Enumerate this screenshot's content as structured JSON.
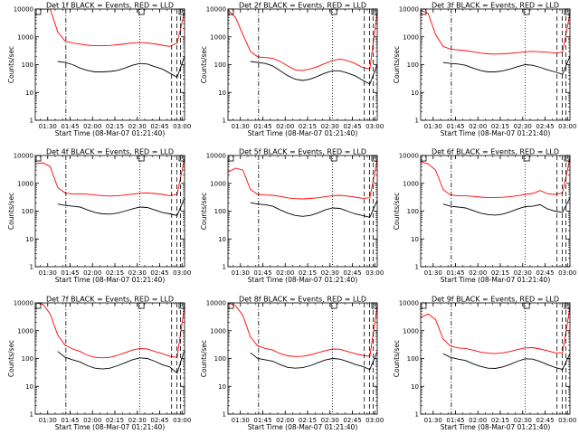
{
  "page": {
    "background": "#ffffff"
  },
  "chart_data": [
    {
      "type": "line",
      "title": "Det 1f BLACK = Events, RED = LLD",
      "xlabel": "Start Time (08-Mar-07 01:21:40)",
      "ylabel": "Counts/sec",
      "x_ticks": [
        "01:30",
        "01:45",
        "02:00",
        "02:15",
        "02:30",
        "02:45",
        "03:00"
      ],
      "y_ticks": [
        "1",
        "10",
        "100",
        "1000",
        "10000"
      ],
      "yscale": "log",
      "ylim": [
        1,
        10000
      ],
      "xlim": [
        "01:21:40",
        "03:01:40"
      ],
      "x": [
        "01:21:40",
        "01:26:40",
        "01:31:40",
        "01:36:40",
        "01:41:40",
        "01:46:40",
        "01:51:40",
        "01:56:40",
        "02:01:40",
        "02:06:40",
        "02:11:40",
        "02:16:40",
        "02:21:40",
        "02:26:40",
        "02:31:40",
        "02:36:40",
        "02:41:40",
        "02:46:40",
        "02:51:40",
        "02:56:40",
        "03:01:40"
      ],
      "series": [
        {
          "color": "#ff0000",
          "values": [
            10000,
            10000,
            10000,
            1500,
            700,
            600,
            550,
            500,
            480,
            480,
            490,
            520,
            560,
            600,
            620,
            600,
            560,
            500,
            450,
            600,
            8000
          ]
        },
        {
          "color": "#000000",
          "values": [
            null,
            null,
            null,
            130,
            120,
            100,
            75,
            62,
            55,
            55,
            57,
            62,
            75,
            95,
            110,
            105,
            85,
            70,
            50,
            35,
            200
          ]
        }
      ],
      "vlines": {
        "dashdot": [
          "01:42:10"
        ],
        "dotted": [
          "02:31:40"
        ],
        "dashed": [
          "02:53:00",
          "02:56:30",
          "02:59:00"
        ]
      },
      "markers": [
        "01:21:40",
        "02:32:40",
        "03:01:40"
      ]
    },
    {
      "type": "line",
      "title": "Det 2f BLACK = Events, RED = LLD",
      "xlabel": "Start Time (08-Mar-07 01:21:40)",
      "ylabel": "Counts/sec",
      "x_ticks": [
        "01:30",
        "01:45",
        "02:00",
        "02:15",
        "02:30",
        "02:45",
        "03:00"
      ],
      "y_ticks": [
        "1",
        "10",
        "100",
        "1000",
        "10000"
      ],
      "yscale": "log",
      "ylim": [
        1,
        10000
      ],
      "xlim": [
        "01:21:40",
        "03:01:40"
      ],
      "x": [
        "01:21:40",
        "01:26:40",
        "01:31:40",
        "01:36:40",
        "01:41:40",
        "01:46:40",
        "01:51:40",
        "01:56:40",
        "02:01:40",
        "02:06:40",
        "02:11:40",
        "02:16:40",
        "02:21:40",
        "02:26:40",
        "02:31:40",
        "02:36:40",
        "02:41:40",
        "02:46:40",
        "02:51:40",
        "02:56:40",
        "03:01:40"
      ],
      "series": [
        {
          "color": "#ff0000",
          "values": [
            9000,
            5000,
            1200,
            300,
            190,
            180,
            170,
            130,
            90,
            65,
            62,
            70,
            85,
            110,
            140,
            160,
            140,
            110,
            80,
            70,
            8000
          ]
        },
        {
          "color": "#000000",
          "values": [
            null,
            null,
            null,
            130,
            120,
            110,
            90,
            60,
            40,
            30,
            27,
            30,
            38,
            50,
            60,
            60,
            50,
            40,
            28,
            20,
            100
          ]
        }
      ],
      "vlines": {
        "dashdot": [
          "01:42:10"
        ],
        "dotted": [
          "02:31:40"
        ],
        "dashed": [
          "02:53:00",
          "02:56:30",
          "02:59:00"
        ]
      },
      "markers": [
        "01:21:40",
        "02:32:40",
        "03:01:40"
      ]
    },
    {
      "type": "line",
      "title": "Det 3f BLACK = Events, RED = LLD",
      "xlabel": "Start Time (08-Mar-07 01:21:40)",
      "ylabel": "Counts/sec",
      "x_ticks": [
        "01:30",
        "01:45",
        "02:00",
        "02:15",
        "02:30",
        "02:45",
        "03:00"
      ],
      "y_ticks": [
        "1",
        "10",
        "100",
        "1000",
        "10000"
      ],
      "yscale": "log",
      "ylim": [
        1,
        10000
      ],
      "xlim": [
        "01:21:40",
        "03:01:40"
      ],
      "x": [
        "01:21:40",
        "01:26:40",
        "01:31:40",
        "01:36:40",
        "01:41:40",
        "01:46:40",
        "01:51:40",
        "01:56:40",
        "02:01:40",
        "02:06:40",
        "02:11:40",
        "02:16:40",
        "02:21:40",
        "02:26:40",
        "02:31:40",
        "02:36:40",
        "02:41:40",
        "02:46:40",
        "02:51:40",
        "02:56:40",
        "03:01:40"
      ],
      "series": [
        {
          "color": "#ff0000",
          "values": [
            9000,
            7000,
            1200,
            450,
            360,
            340,
            320,
            290,
            260,
            245,
            240,
            245,
            255,
            270,
            290,
            300,
            290,
            280,
            260,
            280,
            7000
          ]
        },
        {
          "color": "#000000",
          "values": [
            null,
            null,
            null,
            120,
            110,
            105,
            95,
            75,
            62,
            55,
            55,
            60,
            70,
            85,
            100,
            95,
            80,
            65,
            55,
            45,
            200
          ]
        }
      ],
      "vlines": {
        "dashdot": [
          "01:42:10"
        ],
        "dotted": [
          "02:31:40"
        ],
        "dashed": [
          "02:53:00",
          "02:56:30",
          "02:59:00"
        ]
      },
      "markers": [
        "01:21:40",
        "02:32:40",
        "03:01:40"
      ]
    },
    {
      "type": "line",
      "title": "Det 4f BLACK = Events, RED = LLD",
      "xlabel": "Start Time (08-Mar-07 01:21:40)",
      "ylabel": "Counts/sec",
      "x_ticks": [
        "01:30",
        "01:45",
        "02:00",
        "02:15",
        "02:30",
        "02:45",
        "03:00"
      ],
      "y_ticks": [
        "1",
        "10",
        "100",
        "1000",
        "10000"
      ],
      "yscale": "log",
      "ylim": [
        1,
        10000
      ],
      "xlim": [
        "01:21:40",
        "03:01:40"
      ],
      "x": [
        "01:21:40",
        "01:26:40",
        "01:31:40",
        "01:36:40",
        "01:41:40",
        "01:46:40",
        "01:51:40",
        "01:56:40",
        "02:01:40",
        "02:06:40",
        "02:11:40",
        "02:16:40",
        "02:21:40",
        "02:26:40",
        "02:31:40",
        "02:36:40",
        "02:41:40",
        "02:46:40",
        "02:51:40",
        "02:56:40",
        "03:01:40"
      ],
      "series": [
        {
          "color": "#ff0000",
          "values": [
            5000,
            5500,
            4000,
            700,
            450,
            410,
            420,
            410,
            380,
            360,
            350,
            360,
            380,
            410,
            440,
            450,
            430,
            400,
            360,
            400,
            8000
          ]
        },
        {
          "color": "#000000",
          "values": [
            null,
            null,
            null,
            180,
            160,
            150,
            140,
            110,
            90,
            80,
            78,
            85,
            100,
            120,
            140,
            135,
            110,
            90,
            80,
            70,
            300
          ]
        }
      ],
      "vlines": {
        "dashdot": [
          "01:42:10"
        ],
        "dotted": [
          "02:31:40"
        ],
        "dashed": [
          "02:53:00",
          "02:56:30",
          "02:59:00"
        ]
      },
      "markers": [
        "01:21:40",
        "02:32:40",
        "03:01:40"
      ]
    },
    {
      "type": "line",
      "title": "Det 5f BLACK = Events, RED = LLD",
      "xlabel": "Start Time (08-Mar-07 01:21:40)",
      "ylabel": "Counts/sec",
      "x_ticks": [
        "01:30",
        "01:45",
        "02:00",
        "02:15",
        "02:30",
        "02:45",
        "03:00"
      ],
      "y_ticks": [
        "1",
        "10",
        "100",
        "1000",
        "10000"
      ],
      "yscale": "log",
      "ylim": [
        1,
        10000
      ],
      "xlim": [
        "01:21:40",
        "03:01:40"
      ],
      "x": [
        "01:21:40",
        "01:26:40",
        "01:31:40",
        "01:36:40",
        "01:41:40",
        "01:46:40",
        "01:51:40",
        "01:56:40",
        "02:01:40",
        "02:06:40",
        "02:11:40",
        "02:16:40",
        "02:21:40",
        "02:26:40",
        "02:31:40",
        "02:36:40",
        "02:41:40",
        "02:46:40",
        "02:51:40",
        "02:56:40",
        "03:01:40"
      ],
      "series": [
        {
          "color": "#ff0000",
          "values": [
            2500,
            3500,
            3000,
            600,
            400,
            380,
            370,
            340,
            300,
            280,
            275,
            285,
            300,
            330,
            360,
            370,
            350,
            320,
            290,
            300,
            7000
          ]
        },
        {
          "color": "#000000",
          "values": [
            null,
            null,
            null,
            200,
            180,
            170,
            150,
            110,
            85,
            70,
            65,
            70,
            85,
            110,
            130,
            125,
            100,
            80,
            70,
            60,
            250
          ]
        }
      ],
      "vlines": {
        "dashdot": [
          "01:42:10"
        ],
        "dotted": [
          "02:31:40"
        ],
        "dashed": [
          "02:53:00",
          "02:56:30",
          "02:59:00"
        ]
      },
      "markers": [
        "01:21:40",
        "02:32:40",
        "03:01:40"
      ]
    },
    {
      "type": "line",
      "title": "Det 6f BLACK = Events, RED = LLD",
      "xlabel": "Start Time (08-Mar-07 01:21:40)",
      "ylabel": "Counts/sec",
      "x_ticks": [
        "01:30",
        "01:45",
        "02:00",
        "02:15",
        "02:30",
        "02:45",
        "03:00"
      ],
      "y_ticks": [
        "1",
        "10",
        "100",
        "1000",
        "10000"
      ],
      "yscale": "log",
      "ylim": [
        1,
        10000
      ],
      "xlim": [
        "01:21:40",
        "03:01:40"
      ],
      "x": [
        "01:21:40",
        "01:26:40",
        "01:31:40",
        "01:36:40",
        "01:41:40",
        "01:46:40",
        "01:51:40",
        "01:56:40",
        "02:01:40",
        "02:06:40",
        "02:11:40",
        "02:16:40",
        "02:21:40",
        "02:26:40",
        "02:31:40",
        "02:36:40",
        "02:41:40",
        "02:46:40",
        "02:51:40",
        "02:56:40",
        "03:01:40"
      ],
      "series": [
        {
          "color": "#ff0000",
          "values": [
            6000,
            5000,
            3000,
            600,
            380,
            360,
            355,
            340,
            320,
            310,
            310,
            315,
            330,
            360,
            400,
            430,
            550,
            420,
            400,
            450,
            8000
          ]
        },
        {
          "color": "#000000",
          "values": [
            null,
            null,
            null,
            180,
            150,
            140,
            130,
            105,
            85,
            75,
            72,
            78,
            95,
            120,
            145,
            150,
            170,
            120,
            100,
            90,
            300
          ]
        }
      ],
      "vlines": {
        "dashdot": [
          "01:42:10"
        ],
        "dotted": [
          "02:31:40"
        ],
        "dashed": [
          "02:53:00",
          "02:56:30",
          "02:59:00"
        ]
      },
      "markers": [
        "01:21:40",
        "02:32:40",
        "03:01:40"
      ]
    },
    {
      "type": "line",
      "title": "Det 7f BLACK = Events, RED = LLD",
      "xlabel": "Start Time (08-Mar-07 01:21:40)",
      "ylabel": "Counts/sec",
      "x_ticks": [
        "01:30",
        "01:45",
        "02:00",
        "02:15",
        "02:30",
        "02:45",
        "03:00"
      ],
      "y_ticks": [
        "1",
        "10",
        "100",
        "1000",
        "10000"
      ],
      "yscale": "log",
      "ylim": [
        1,
        10000
      ],
      "xlim": [
        "01:21:40",
        "03:01:40"
      ],
      "x": [
        "01:21:40",
        "01:26:40",
        "01:31:40",
        "01:36:40",
        "01:41:40",
        "01:46:40",
        "01:51:40",
        "01:56:40",
        "02:01:40",
        "02:06:40",
        "02:11:40",
        "02:16:40",
        "02:21:40",
        "02:26:40",
        "02:31:40",
        "02:36:40",
        "02:41:40",
        "02:46:40",
        "02:51:40",
        "02:56:40",
        "03:01:40"
      ],
      "series": [
        {
          "color": "#ff0000",
          "values": [
            10000,
            9000,
            4000,
            700,
            300,
            220,
            180,
            130,
            110,
            105,
            110,
            130,
            160,
            200,
            230,
            220,
            180,
            150,
            120,
            110,
            8000
          ]
        },
        {
          "color": "#000000",
          "values": [
            null,
            null,
            null,
            180,
            110,
            90,
            75,
            55,
            45,
            42,
            45,
            55,
            70,
            90,
            105,
            100,
            80,
            60,
            50,
            30,
            200
          ]
        }
      ],
      "vlines": {
        "dashdot": [
          "01:42:10"
        ],
        "dotted": [
          "02:31:40"
        ],
        "dashed": [
          "02:53:00",
          "02:56:30",
          "02:59:00"
        ]
      },
      "markers": [
        "01:21:40",
        "02:32:40",
        "03:01:40"
      ]
    },
    {
      "type": "line",
      "title": "Det 8f BLACK = Events, RED = LLD",
      "xlabel": "Start Time (08-Mar-07 01:21:40)",
      "ylabel": "Counts/sec",
      "x_ticks": [
        "01:30",
        "01:45",
        "02:00",
        "02:15",
        "02:30",
        "02:45",
        "03:00"
      ],
      "y_ticks": [
        "1",
        "10",
        "100",
        "1000",
        "10000"
      ],
      "yscale": "log",
      "ylim": [
        1,
        10000
      ],
      "xlim": [
        "01:21:40",
        "03:01:40"
      ],
      "x": [
        "01:21:40",
        "01:26:40",
        "01:31:40",
        "01:36:40",
        "01:41:40",
        "01:46:40",
        "01:51:40",
        "01:56:40",
        "02:01:40",
        "02:06:40",
        "02:11:40",
        "02:16:40",
        "02:21:40",
        "02:26:40",
        "02:31:40",
        "02:36:40",
        "02:41:40",
        "02:46:40",
        "02:51:40",
        "02:56:40",
        "03:01:40"
      ],
      "series": [
        {
          "color": "#ff0000",
          "values": [
            10000,
            8000,
            3500,
            600,
            280,
            230,
            200,
            150,
            125,
            118,
            120,
            135,
            160,
            190,
            220,
            215,
            180,
            150,
            130,
            120,
            7500
          ]
        },
        {
          "color": "#000000",
          "values": [
            null,
            null,
            null,
            160,
            100,
            90,
            80,
            60,
            48,
            45,
            47,
            55,
            70,
            88,
            100,
            95,
            78,
            62,
            52,
            40,
            180
          ]
        }
      ],
      "vlines": {
        "dashdot": [
          "01:42:10"
        ],
        "dotted": [
          "02:31:40"
        ],
        "dashed": [
          "02:53:00",
          "02:56:30",
          "02:59:00"
        ]
      },
      "markers": [
        "01:21:40",
        "02:32:40",
        "03:01:40"
      ]
    },
    {
      "type": "line",
      "title": "Det 9f BLACK = Events, RED = LLD",
      "xlabel": "Start Time (08-Mar-07 01:21:40)",
      "ylabel": "Counts/sec",
      "x_ticks": [
        "01:30",
        "01:45",
        "02:00",
        "02:15",
        "02:30",
        "02:45",
        "03:00"
      ],
      "y_ticks": [
        "1",
        "10",
        "100",
        "1000",
        "10000"
      ],
      "yscale": "log",
      "ylim": [
        1,
        10000
      ],
      "xlim": [
        "01:21:40",
        "03:01:40"
      ],
      "x": [
        "01:21:40",
        "01:26:40",
        "01:31:40",
        "01:36:40",
        "01:41:40",
        "01:46:40",
        "01:51:40",
        "01:56:40",
        "02:01:40",
        "02:06:40",
        "02:11:40",
        "02:16:40",
        "02:21:40",
        "02:26:40",
        "02:31:40",
        "02:36:40",
        "02:41:40",
        "02:46:40",
        "02:51:40",
        "02:56:40",
        "03:01:40"
      ],
      "series": [
        {
          "color": "#ff0000",
          "values": [
            3000,
            4000,
            2500,
            500,
            280,
            240,
            230,
            200,
            170,
            155,
            150,
            160,
            180,
            210,
            240,
            245,
            220,
            190,
            160,
            160,
            7000
          ]
        },
        {
          "color": "#000000",
          "values": [
            null,
            null,
            null,
            150,
            110,
            95,
            85,
            65,
            52,
            45,
            44,
            50,
            62,
            80,
            98,
            95,
            78,
            60,
            48,
            40,
            150
          ]
        }
      ],
      "vlines": {
        "dashdot": [
          "01:42:10"
        ],
        "dotted": [
          "02:31:40"
        ],
        "dashed": [
          "02:53:00",
          "02:56:30",
          "02:59:00"
        ]
      },
      "markers": [
        "01:21:40",
        "02:32:40",
        "03:01:40"
      ]
    }
  ]
}
